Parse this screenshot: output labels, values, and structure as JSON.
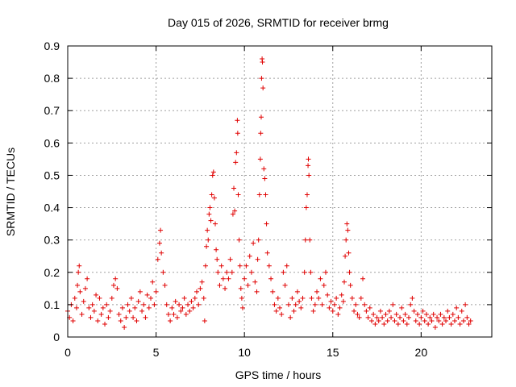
{
  "chart_data": {
    "type": "scatter",
    "title": "Day 015 of 2026, SRMTID for receiver brmg",
    "xlabel": "GPS time / hours",
    "ylabel": "SRMTID / TECUs",
    "xlim": [
      0,
      24
    ],
    "ylim": [
      0,
      0.9
    ],
    "xticks": [
      0,
      5,
      10,
      15,
      20
    ],
    "xtick_labels": [
      "0",
      "5",
      "10",
      "15",
      "20"
    ],
    "yticks": [
      0,
      0.1,
      0.2,
      0.3,
      0.4,
      0.5,
      0.6,
      0.7,
      0.8,
      0.9
    ],
    "ytick_labels": [
      "0",
      "0.1",
      "0.2",
      "0.3",
      "0.4",
      "0.5",
      "0.6",
      "0.7",
      "0.8",
      "0.9"
    ],
    "grid": true,
    "marker": "plus",
    "series_color": "#e00000",
    "series": [
      {
        "name": "SRMTID",
        "points": [
          [
            0.0,
            0.08
          ],
          [
            0.1,
            0.06
          ],
          [
            0.2,
            0.1
          ],
          [
            0.3,
            0.05
          ],
          [
            0.4,
            0.12
          ],
          [
            0.5,
            0.09
          ],
          [
            0.55,
            0.16
          ],
          [
            0.6,
            0.2
          ],
          [
            0.65,
            0.22
          ],
          [
            0.7,
            0.14
          ],
          [
            0.8,
            0.07
          ],
          [
            0.9,
            0.11
          ],
          [
            1.0,
            0.15
          ],
          [
            1.1,
            0.18
          ],
          [
            1.2,
            0.09
          ],
          [
            1.3,
            0.06
          ],
          [
            1.4,
            0.1
          ],
          [
            1.5,
            0.08
          ],
          [
            1.6,
            0.13
          ],
          [
            1.7,
            0.05
          ],
          [
            1.8,
            0.12
          ],
          [
            1.9,
            0.07
          ],
          [
            2.0,
            0.09
          ],
          [
            2.1,
            0.04
          ],
          [
            2.2,
            0.1
          ],
          [
            2.3,
            0.06
          ],
          [
            2.4,
            0.08
          ],
          [
            2.5,
            0.12
          ],
          [
            2.6,
            0.16
          ],
          [
            2.7,
            0.18
          ],
          [
            2.8,
            0.15
          ],
          [
            2.9,
            0.07
          ],
          [
            3.0,
            0.05
          ],
          [
            3.1,
            0.09
          ],
          [
            3.2,
            0.03
          ],
          [
            3.3,
            0.06
          ],
          [
            3.4,
            0.1
          ],
          [
            3.5,
            0.08
          ],
          [
            3.6,
            0.12
          ],
          [
            3.7,
            0.06
          ],
          [
            3.8,
            0.09
          ],
          [
            3.9,
            0.05
          ],
          [
            4.0,
            0.11
          ],
          [
            4.1,
            0.14
          ],
          [
            4.2,
            0.08
          ],
          [
            4.3,
            0.1
          ],
          [
            4.4,
            0.06
          ],
          [
            4.5,
            0.13
          ],
          [
            4.6,
            0.09
          ],
          [
            4.7,
            0.12
          ],
          [
            4.8,
            0.17
          ],
          [
            4.9,
            0.1
          ],
          [
            5.0,
            0.14
          ],
          [
            5.1,
            0.24
          ],
          [
            5.2,
            0.29
          ],
          [
            5.25,
            0.33
          ],
          [
            5.3,
            0.26
          ],
          [
            5.4,
            0.2
          ],
          [
            5.5,
            0.16
          ],
          [
            5.6,
            0.1
          ],
          [
            5.7,
            0.07
          ],
          [
            5.8,
            0.05
          ],
          [
            5.9,
            0.09
          ],
          [
            6.0,
            0.07
          ],
          [
            6.1,
            0.11
          ],
          [
            6.2,
            0.06
          ],
          [
            6.3,
            0.1
          ],
          [
            6.4,
            0.08
          ],
          [
            6.5,
            0.09
          ],
          [
            6.6,
            0.12
          ],
          [
            6.7,
            0.07
          ],
          [
            6.8,
            0.1
          ],
          [
            6.9,
            0.08
          ],
          [
            7.0,
            0.11
          ],
          [
            7.1,
            0.09
          ],
          [
            7.2,
            0.12
          ],
          [
            7.3,
            0.14
          ],
          [
            7.4,
            0.1
          ],
          [
            7.5,
            0.15
          ],
          [
            7.6,
            0.17
          ],
          [
            7.7,
            0.12
          ],
          [
            7.75,
            0.05
          ],
          [
            7.8,
            0.22
          ],
          [
            7.85,
            0.28
          ],
          [
            7.9,
            0.33
          ],
          [
            7.95,
            0.3
          ],
          [
            8.0,
            0.38
          ],
          [
            8.05,
            0.4
          ],
          [
            8.1,
            0.36
          ],
          [
            8.15,
            0.44
          ],
          [
            8.2,
            0.5
          ],
          [
            8.25,
            0.51
          ],
          [
            8.3,
            0.43
          ],
          [
            8.35,
            0.35
          ],
          [
            8.4,
            0.27
          ],
          [
            8.45,
            0.24
          ],
          [
            8.5,
            0.2
          ],
          [
            8.6,
            0.16
          ],
          [
            8.7,
            0.22
          ],
          [
            8.8,
            0.18
          ],
          [
            8.9,
            0.15
          ],
          [
            9.0,
            0.2
          ],
          [
            9.1,
            0.18
          ],
          [
            9.2,
            0.24
          ],
          [
            9.3,
            0.2
          ],
          [
            9.35,
            0.38
          ],
          [
            9.4,
            0.46
          ],
          [
            9.45,
            0.39
          ],
          [
            9.5,
            0.54
          ],
          [
            9.55,
            0.57
          ],
          [
            9.6,
            0.67
          ],
          [
            9.62,
            0.63
          ],
          [
            9.65,
            0.44
          ],
          [
            9.7,
            0.3
          ],
          [
            9.75,
            0.22
          ],
          [
            9.8,
            0.15
          ],
          [
            9.85,
            0.12
          ],
          [
            9.9,
            0.09
          ],
          [
            10.0,
            0.18
          ],
          [
            10.1,
            0.22
          ],
          [
            10.2,
            0.16
          ],
          [
            10.3,
            0.25
          ],
          [
            10.4,
            0.2
          ],
          [
            10.5,
            0.29
          ],
          [
            10.6,
            0.17
          ],
          [
            10.7,
            0.14
          ],
          [
            10.75,
            0.24
          ],
          [
            10.8,
            0.3
          ],
          [
            10.85,
            0.44
          ],
          [
            10.9,
            0.55
          ],
          [
            10.92,
            0.63
          ],
          [
            10.95,
            0.68
          ],
          [
            10.97,
            0.8
          ],
          [
            11.0,
            0.86
          ],
          [
            11.02,
            0.85
          ],
          [
            11.05,
            0.77
          ],
          [
            11.1,
            0.52
          ],
          [
            11.15,
            0.49
          ],
          [
            11.2,
            0.44
          ],
          [
            11.25,
            0.35
          ],
          [
            11.3,
            0.26
          ],
          [
            11.4,
            0.22
          ],
          [
            11.5,
            0.18
          ],
          [
            11.6,
            0.14
          ],
          [
            11.7,
            0.1
          ],
          [
            11.8,
            0.08
          ],
          [
            11.9,
            0.12
          ],
          [
            12.0,
            0.09
          ],
          [
            12.1,
            0.07
          ],
          [
            12.2,
            0.2
          ],
          [
            12.3,
            0.16
          ],
          [
            12.4,
            0.22
          ],
          [
            12.5,
            0.1
          ],
          [
            12.6,
            0.06
          ],
          [
            12.7,
            0.12
          ],
          [
            12.8,
            0.08
          ],
          [
            12.9,
            0.1
          ],
          [
            13.0,
            0.14
          ],
          [
            13.1,
            0.11
          ],
          [
            13.2,
            0.09
          ],
          [
            13.3,
            0.12
          ],
          [
            13.4,
            0.2
          ],
          [
            13.45,
            0.3
          ],
          [
            13.5,
            0.4
          ],
          [
            13.55,
            0.44
          ],
          [
            13.6,
            0.53
          ],
          [
            13.62,
            0.55
          ],
          [
            13.65,
            0.5
          ],
          [
            13.7,
            0.3
          ],
          [
            13.75,
            0.2
          ],
          [
            13.8,
            0.12
          ],
          [
            13.9,
            0.08
          ],
          [
            14.0,
            0.1
          ],
          [
            14.1,
            0.14
          ],
          [
            14.2,
            0.12
          ],
          [
            14.3,
            0.18
          ],
          [
            14.4,
            0.1
          ],
          [
            14.5,
            0.16
          ],
          [
            14.6,
            0.2
          ],
          [
            14.7,
            0.13
          ],
          [
            14.8,
            0.09
          ],
          [
            14.9,
            0.11
          ],
          [
            15.0,
            0.08
          ],
          [
            15.1,
            0.1
          ],
          [
            15.2,
            0.12
          ],
          [
            15.3,
            0.07
          ],
          [
            15.4,
            0.09
          ],
          [
            15.5,
            0.13
          ],
          [
            15.6,
            0.11
          ],
          [
            15.65,
            0.17
          ],
          [
            15.7,
            0.25
          ],
          [
            15.75,
            0.3
          ],
          [
            15.8,
            0.35
          ],
          [
            15.85,
            0.33
          ],
          [
            15.9,
            0.26
          ],
          [
            15.95,
            0.2
          ],
          [
            16.0,
            0.16
          ],
          [
            16.1,
            0.12
          ],
          [
            16.2,
            0.08
          ],
          [
            16.3,
            0.1
          ],
          [
            16.4,
            0.07
          ],
          [
            16.5,
            0.06
          ],
          [
            16.6,
            0.12
          ],
          [
            16.7,
            0.18
          ],
          [
            16.8,
            0.1
          ],
          [
            16.9,
            0.08
          ],
          [
            17.0,
            0.06
          ],
          [
            17.1,
            0.09
          ],
          [
            17.2,
            0.05
          ],
          [
            17.3,
            0.07
          ],
          [
            17.4,
            0.04
          ],
          [
            17.5,
            0.06
          ],
          [
            17.6,
            0.05
          ],
          [
            17.7,
            0.08
          ],
          [
            17.8,
            0.06
          ],
          [
            17.9,
            0.04
          ],
          [
            18.0,
            0.07
          ],
          [
            18.1,
            0.05
          ],
          [
            18.2,
            0.08
          ],
          [
            18.3,
            0.06
          ],
          [
            18.4,
            0.1
          ],
          [
            18.5,
            0.05
          ],
          [
            18.6,
            0.07
          ],
          [
            18.7,
            0.04
          ],
          [
            18.8,
            0.06
          ],
          [
            18.9,
            0.09
          ],
          [
            19.0,
            0.05
          ],
          [
            19.1,
            0.07
          ],
          [
            19.2,
            0.04
          ],
          [
            19.3,
            0.06
          ],
          [
            19.4,
            0.1
          ],
          [
            19.5,
            0.12
          ],
          [
            19.6,
            0.08
          ],
          [
            19.7,
            0.05
          ],
          [
            19.8,
            0.07
          ],
          [
            19.9,
            0.04
          ],
          [
            20.0,
            0.06
          ],
          [
            20.1,
            0.08
          ],
          [
            20.2,
            0.05
          ],
          [
            20.3,
            0.07
          ],
          [
            20.4,
            0.04
          ],
          [
            20.5,
            0.06
          ],
          [
            20.6,
            0.05
          ],
          [
            20.7,
            0.07
          ],
          [
            20.8,
            0.03
          ],
          [
            20.9,
            0.06
          ],
          [
            21.0,
            0.05
          ],
          [
            21.1,
            0.07
          ],
          [
            21.2,
            0.04
          ],
          [
            21.3,
            0.06
          ],
          [
            21.4,
            0.05
          ],
          [
            21.5,
            0.08
          ],
          [
            21.6,
            0.06
          ],
          [
            21.7,
            0.04
          ],
          [
            21.8,
            0.07
          ],
          [
            21.9,
            0.05
          ],
          [
            22.0,
            0.09
          ],
          [
            22.1,
            0.06
          ],
          [
            22.2,
            0.04
          ],
          [
            22.3,
            0.08
          ],
          [
            22.4,
            0.05
          ],
          [
            22.5,
            0.1
          ],
          [
            22.6,
            0.06
          ],
          [
            22.7,
            0.04
          ],
          [
            22.8,
            0.05
          ]
        ]
      }
    ]
  }
}
